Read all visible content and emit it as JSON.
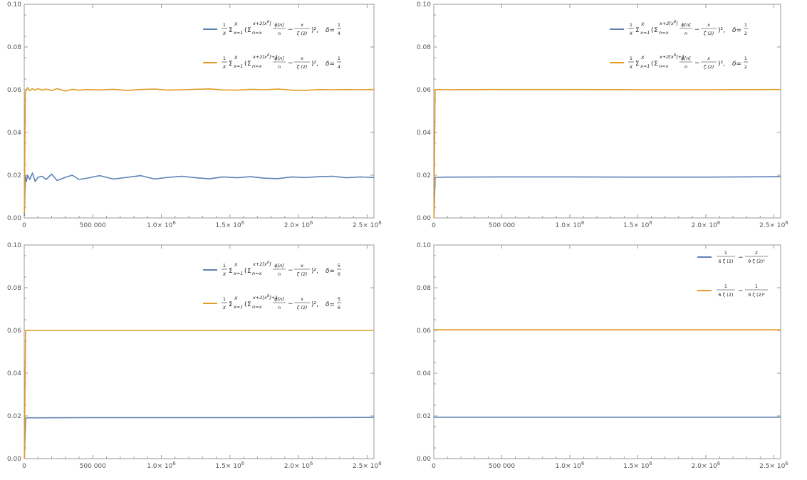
{
  "panel_order": [
    "top_left",
    "top_right",
    "bottom_left",
    "bottom_right"
  ],
  "colors": {
    "series1": "#5e81b5",
    "series2": "#e19c24",
    "axis": "#999999",
    "tick_label": "#555555"
  },
  "axis_common": {
    "x_tick_values": [
      0,
      500000,
      1000000,
      1500000,
      2000000,
      2500000
    ],
    "x_tick_labels": [
      "0",
      "500 000",
      "1.0",
      "1.5",
      "2.0",
      "2.5"
    ],
    "x_tick_pow_base": "× 10",
    "x_tick_pow_exp": "6",
    "y_tick_values": [
      0,
      0.02,
      0.04,
      0.06,
      0.08,
      0.1
    ],
    "y_tick_labels": [
      "0.00",
      "0.02",
      "0.04",
      "0.06",
      "0.08",
      "0.10"
    ]
  },
  "legend_text": {
    "frac_one": "1",
    "var_X": "X",
    "sigma": "Σ",
    "sub_x_eq_1": "x=1",
    "sub_n_eq": "n=x",
    "sup_upper": "x+2[x",
    "sup_delta": "δ",
    "sup_close": "]",
    "sup_plus_one": "+1",
    "paren_open": "(",
    "phi_num": "ϕ[n]",
    "phi_den": "n",
    "minus": "−",
    "x_num": "x",
    "zeta_den": "ζ (2)",
    "close_sq": ")²,",
    "delta_eq": "δ=",
    "const_num_1": "1",
    "const_den_1": "6 ζ (2)",
    "const_num_2a": "2",
    "const_num_2b": "1",
    "const_den_2": "9 ζ (2)²"
  },
  "chart_data": [
    {
      "id": "top_left",
      "type": "line",
      "xlim": [
        0,
        2550000
      ],
      "ylim": [
        0,
        0.1
      ],
      "legend_position": "top-right",
      "delta": {
        "num": "1",
        "den": "4"
      },
      "series": [
        {
          "color": "#5e81b5",
          "x": [
            1000,
            8000,
            15000,
            25000,
            40000,
            60000,
            80000,
            100000,
            130000,
            160000,
            200000,
            240000,
            300000,
            350000,
            400000,
            450000,
            550000,
            650000,
            750000,
            850000,
            950000,
            1050000,
            1150000,
            1250000,
            1350000,
            1450000,
            1550000,
            1650000,
            1750000,
            1850000,
            1950000,
            2050000,
            2150000,
            2250000,
            2350000,
            2450000,
            2550000
          ],
          "y": [
            0.001,
            0.02,
            0.017,
            0.02,
            0.018,
            0.021,
            0.017,
            0.019,
            0.0195,
            0.018,
            0.0205,
            0.0175,
            0.019,
            0.02,
            0.018,
            0.0185,
            0.0198,
            0.0182,
            0.019,
            0.0198,
            0.0182,
            0.019,
            0.0195,
            0.0188,
            0.0183,
            0.0192,
            0.0188,
            0.0193,
            0.0186,
            0.0184,
            0.0192,
            0.0189,
            0.0193,
            0.0195,
            0.0188,
            0.0192,
            0.0189
          ]
        },
        {
          "color": "#e19c24",
          "x": [
            1000,
            8000,
            15000,
            25000,
            40000,
            60000,
            80000,
            100000,
            130000,
            160000,
            200000,
            240000,
            300000,
            350000,
            400000,
            450000,
            550000,
            650000,
            750000,
            850000,
            950000,
            1050000,
            1150000,
            1250000,
            1350000,
            1450000,
            1550000,
            1650000,
            1750000,
            1850000,
            1950000,
            2050000,
            2150000,
            2250000,
            2350000,
            2450000,
            2550000
          ],
          "y": [
            0.002,
            0.059,
            0.06,
            0.061,
            0.0595,
            0.0605,
            0.0598,
            0.0605,
            0.0598,
            0.0603,
            0.0596,
            0.0605,
            0.0594,
            0.0602,
            0.0598,
            0.0601,
            0.0599,
            0.0602,
            0.0597,
            0.0601,
            0.0603,
            0.0598,
            0.06,
            0.0602,
            0.0604,
            0.0599,
            0.0598,
            0.0602,
            0.06,
            0.0603,
            0.0598,
            0.0597,
            0.0601,
            0.06,
            0.0601,
            0.06,
            0.0601
          ]
        }
      ]
    },
    {
      "id": "top_right",
      "type": "line",
      "xlim": [
        0,
        2550000
      ],
      "ylim": [
        0,
        0.1
      ],
      "legend_position": "top-right",
      "delta": {
        "num": "1",
        "den": "2"
      },
      "series": [
        {
          "color": "#5e81b5",
          "x": [
            1000,
            10000,
            30000,
            100000,
            500000,
            1000000,
            1500000,
            2000000,
            2550000
          ],
          "y": [
            0.0,
            0.019,
            0.019,
            0.0191,
            0.0192,
            0.0192,
            0.0191,
            0.0191,
            0.0193
          ]
        },
        {
          "color": "#e19c24",
          "x": [
            1000,
            10000,
            30000,
            100000,
            500000,
            1000000,
            1500000,
            2000000,
            2550000
          ],
          "y": [
            0.0,
            0.06,
            0.0601,
            0.06,
            0.0601,
            0.0601,
            0.06,
            0.06,
            0.0601
          ]
        }
      ]
    },
    {
      "id": "bottom_left",
      "type": "line",
      "xlim": [
        0,
        2550000
      ],
      "ylim": [
        0,
        0.1
      ],
      "legend_position": "top-right",
      "delta": {
        "num": "5",
        "den": "6"
      },
      "series": [
        {
          "color": "#5e81b5",
          "x": [
            1000,
            10000,
            30000,
            100000,
            500000,
            1000000,
            1500000,
            2000000,
            2550000
          ],
          "y": [
            0.0,
            0.019,
            0.0191,
            0.0191,
            0.0192,
            0.0192,
            0.0192,
            0.0192,
            0.0193
          ]
        },
        {
          "color": "#e19c24",
          "x": [
            1000,
            10000,
            30000,
            100000,
            500000,
            1000000,
            1500000,
            2000000,
            2550000
          ],
          "y": [
            0.0,
            0.06,
            0.0601,
            0.06,
            0.06,
            0.06,
            0.06,
            0.06,
            0.06
          ]
        }
      ]
    },
    {
      "id": "bottom_right",
      "type": "line",
      "xlim": [
        0,
        2550000
      ],
      "ylim": [
        0,
        0.1
      ],
      "legend_position": "top-right",
      "series": [
        {
          "color": "#5e81b5",
          "x": [
            0,
            2550000
          ],
          "y": [
            0.0194,
            0.0194
          ]
        },
        {
          "color": "#e19c24",
          "x": [
            0,
            2550000
          ],
          "y": [
            0.0603,
            0.0603
          ]
        }
      ]
    }
  ]
}
